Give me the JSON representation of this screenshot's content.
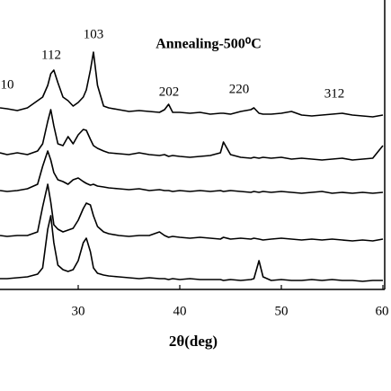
{
  "chart_data": {
    "type": "line",
    "title": "Annealing-500⁰C",
    "x_label": "2θ(deg)",
    "annotations": [
      "10",
      "112",
      "103",
      "202",
      "220",
      "312"
    ],
    "x": [
      22.3,
      23,
      24,
      25,
      26,
      26.5,
      27,
      27.3,
      27.6,
      28,
      28.5,
      29,
      29.5,
      30,
      30.5,
      30.8,
      31.2,
      31.5,
      31.9,
      32.5,
      33,
      34,
      35,
      36,
      37,
      38,
      38.5,
      38.9,
      39.3,
      40,
      41,
      42,
      43,
      44,
      44.3,
      45,
      46,
      47,
      47.3,
      47.8,
      48.2,
      49,
      50,
      51,
      52,
      53,
      54,
      55,
      56,
      57,
      58,
      59,
      60
    ],
    "series": [
      {
        "color": "#000000",
        "values": [
          202,
          201,
          199,
          202,
          210,
          214,
          227,
          240,
          244,
          230,
          214,
          210,
          204,
          208,
          214,
          222,
          244,
          264,
          227,
          204,
          202,
          200,
          198,
          199,
          198,
          197,
          200,
          206,
          197,
          197,
          196,
          197,
          195,
          196,
          196,
          195,
          198,
          200,
          202,
          196,
          195,
          195,
          196,
          198,
          194,
          193,
          194,
          195,
          196,
          194,
          193,
          192,
          194
        ]
      },
      {
        "color": "#000000",
        "values": [
          152,
          150,
          152,
          150,
          154,
          162,
          187,
          200,
          182,
          162,
          160,
          170,
          162,
          172,
          178,
          177,
          167,
          160,
          157,
          154,
          152,
          151,
          150,
          152,
          150,
          149,
          150,
          148,
          149,
          148,
          147,
          148,
          149,
          152,
          164,
          150,
          147,
          146,
          147,
          146,
          147,
          146,
          147,
          145,
          146,
          145,
          144,
          145,
          146,
          144,
          145,
          146,
          160
        ]
      },
      {
        "color": "#000000",
        "values": [
          110,
          109,
          110,
          112,
          117,
          137,
          154,
          144,
          130,
          122,
          120,
          117,
          122,
          124,
          120,
          118,
          116,
          117,
          115,
          114,
          113,
          112,
          111,
          112,
          110,
          111,
          110,
          110,
          109,
          110,
          109,
          110,
          109,
          110,
          109,
          110,
          109,
          108,
          109,
          108,
          109,
          108,
          109,
          108,
          107,
          108,
          109,
          107,
          108,
          107,
          108,
          107,
          108
        ]
      },
      {
        "color": "#000000",
        "values": [
          60,
          59,
          60,
          60,
          64,
          92,
          117,
          97,
          72,
          67,
          64,
          66,
          68,
          77,
          90,
          96,
          94,
          82,
          70,
          64,
          62,
          60,
          59,
          60,
          60,
          64,
          60,
          58,
          59,
          58,
          57,
          58,
          57,
          56,
          58,
          56,
          57,
          56,
          57,
          56,
          55,
          56,
          57,
          56,
          55,
          56,
          55,
          56,
          55,
          54,
          55,
          54,
          56
        ]
      },
      {
        "color": "#000000",
        "values": [
          12,
          12,
          13,
          14,
          17,
          24,
          67,
          82,
          52,
          27,
          22,
          20,
          22,
          32,
          52,
          57,
          42,
          24,
          18,
          16,
          15,
          14,
          13,
          12,
          13,
          12,
          12,
          11,
          12,
          11,
          12,
          11,
          11,
          11,
          10,
          11,
          10,
          11,
          12,
          32,
          14,
          10,
          11,
          10,
          10,
          11,
          10,
          11,
          10,
          10,
          9,
          10,
          10
        ]
      }
    ],
    "xlim": [
      22.3,
      60
    ],
    "xticks": [
      30,
      40,
      50,
      60
    ],
    "ylim": [
      0,
      322
    ]
  }
}
